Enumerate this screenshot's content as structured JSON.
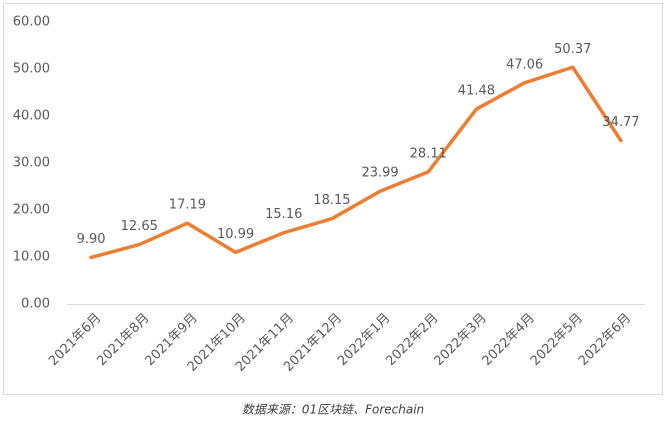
{
  "chart_data": {
    "type": "line",
    "categories": [
      "2021年6月",
      "2021年8月",
      "2021年9月",
      "2021年10月",
      "2021年11月",
      "2021年12月",
      "2022年1月",
      "2022年2月",
      "2022年3月",
      "2022年4月",
      "2022年5月",
      "2022年6月"
    ],
    "series": [
      {
        "name": null,
        "color": "#ED7D31",
        "values": [
          9.9,
          12.65,
          17.19,
          10.99,
          15.16,
          18.15,
          23.99,
          28.11,
          41.48,
          47.06,
          50.37,
          34.77
        ],
        "value_labels": [
          "9.90",
          "12.65",
          "17.19",
          "10.99",
          "15.16",
          "18.15",
          "23.99",
          "28.11",
          "41.48",
          "47.06",
          "50.37",
          "34.77"
        ]
      }
    ],
    "ylim": [
      0,
      60
    ],
    "yticks": [
      {
        "value": 0,
        "label": "0.00"
      },
      {
        "value": 10,
        "label": "10.00"
      },
      {
        "value": 20,
        "label": "20.00"
      },
      {
        "value": 30,
        "label": "30.00"
      },
      {
        "value": 40,
        "label": "40.00"
      },
      {
        "value": 50,
        "label": "50.00"
      },
      {
        "value": 60,
        "label": "60.00"
      }
    ],
    "grid": false,
    "source": "数据来源：01区块链、Forechain"
  }
}
